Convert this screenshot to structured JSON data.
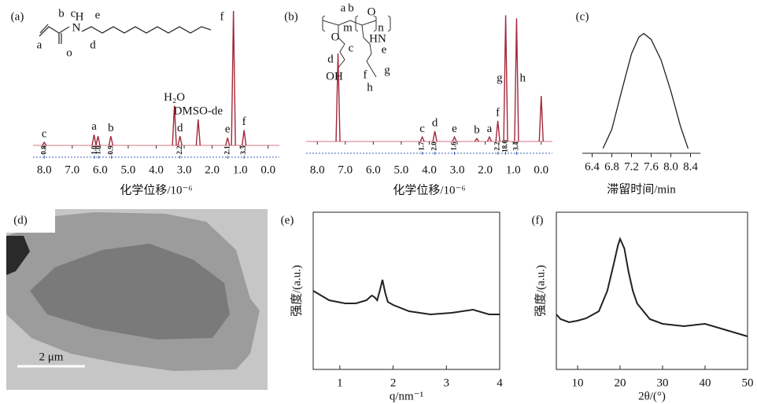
{
  "chart_data": [
    {
      "type": "spectrum",
      "panel_label": "(a)",
      "xlabel": "化学位移/10⁻⁶",
      "xlim": [
        8.4,
        -0.4
      ],
      "ylim": [
        0,
        180
      ],
      "xticks": [
        {
          "value": 8,
          "label": "8.0"
        },
        {
          "value": 7,
          "label": "7.0"
        },
        {
          "value": 6,
          "label": "6.0"
        },
        {
          "value": 5,
          "label": "5.0"
        },
        {
          "value": 4,
          "label": "4.0"
        },
        {
          "value": 3,
          "label": "3.0"
        },
        {
          "value": 2,
          "label": "2.0"
        },
        {
          "value": 1,
          "label": "1.0"
        },
        {
          "value": 0,
          "label": "0.0"
        }
      ],
      "x": [
        8.0,
        6.22,
        6.08,
        5.62,
        3.35,
        3.15,
        2.5,
        1.45,
        1.24,
        0.86
      ],
      "values": [
        4,
        14,
        12,
        12,
        52,
        12,
        34,
        10,
        176,
        20
      ],
      "labels": [
        "c",
        "a",
        null,
        "b",
        "H₂O",
        "d",
        "DMSO-de",
        "e",
        null,
        "f"
      ],
      "color": "#a3283a",
      "integrals": {
        "x": [
          8.0,
          6.2,
          6.05,
          5.6,
          3.15,
          1.45,
          0.86
        ],
        "values": [
          0.8,
          1,
          1,
          0.9,
          2.2,
          2.1,
          3.3
        ],
        "value_labels": [
          "0.8",
          "1.0",
          "1.0",
          "0.9",
          "2.2",
          "2.1",
          "3.3"
        ]
      },
      "structure_labels": [
        "a",
        "b",
        "c",
        "H",
        "N",
        "e",
        "f",
        "o",
        "d"
      ]
    },
    {
      "type": "spectrum",
      "panel_label": "(b)",
      "xlabel": "化学位移/10⁻⁶",
      "xlim": [
        8.4,
        -0.4
      ],
      "ylim": [
        0,
        180
      ],
      "xticks": [
        {
          "value": 8,
          "label": "8.0"
        },
        {
          "value": 7,
          "label": "7.0"
        },
        {
          "value": 6,
          "label": "6.0"
        },
        {
          "value": 5,
          "label": "5.0"
        },
        {
          "value": 4,
          "label": "4.0"
        },
        {
          "value": 3,
          "label": "3.0"
        },
        {
          "value": 2,
          "label": "2.0"
        },
        {
          "value": 1,
          "label": "1.0"
        },
        {
          "value": 0,
          "label": "0.0"
        }
      ],
      "x": [
        7.26,
        4.25,
        3.8,
        3.1,
        2.3,
        1.85,
        1.55,
        1.27,
        0.88,
        0.0
      ],
      "values": [
        120,
        6,
        14,
        6,
        4,
        6,
        28,
        172,
        168,
        62
      ],
      "labels": [
        null,
        "c",
        "d",
        "e",
        "b",
        "a",
        "f",
        "g",
        "h",
        null
      ],
      "color": "#a3283a",
      "integrals": {
        "x": [
          4.25,
          3.8,
          3.1,
          1.55,
          1.27,
          0.88
        ],
        "values": [
          1.7,
          2,
          1.6,
          2.2,
          18.6,
          3.4
        ],
        "value_labels": [
          "1.7",
          "2.0",
          "1.6",
          "2.2",
          "18.6",
          "3.4"
        ]
      },
      "structure_labels": [
        "a",
        "b",
        "m",
        "n",
        "c",
        "d",
        "e",
        "f",
        "g",
        "h",
        "O",
        "OH",
        "HN",
        "O"
      ]
    },
    {
      "type": "line",
      "panel_label": "(c)",
      "xlabel": "滞留时间/min",
      "xlim": [
        6.2,
        8.6
      ],
      "ylim": [
        0,
        1.05
      ],
      "xticks": [
        6.4,
        6.8,
        7.2,
        7.6,
        {
          "value": 8,
          "label": "8.0"
        },
        8.4
      ],
      "x": [
        6.62,
        6.8,
        7.0,
        7.2,
        7.35,
        7.45,
        7.6,
        7.8,
        8.0,
        8.2,
        8.35
      ],
      "values": [
        0.04,
        0.2,
        0.52,
        0.83,
        0.97,
        1.0,
        0.95,
        0.78,
        0.52,
        0.22,
        0.04
      ],
      "color": "#222222"
    },
    {
      "type": "image",
      "panel_label": "(d)",
      "scale_bar": "2 μm"
    },
    {
      "type": "line",
      "panel_label": "(e)",
      "xlabel": "q/nm⁻¹",
      "ylabel": "强度/(a.u.)",
      "xlim": [
        0.5,
        4
      ],
      "ylim": [
        0,
        100
      ],
      "xticks": [
        1,
        2,
        3,
        4
      ],
      "x": [
        0.5,
        0.8,
        1.1,
        1.3,
        1.5,
        1.6,
        1.65,
        1.7,
        1.75,
        1.8,
        1.85,
        1.9,
        2.0,
        2.3,
        2.7,
        3.1,
        3.5,
        3.8,
        4.0
      ],
      "values": [
        50,
        44,
        42,
        42,
        44,
        47,
        46,
        44,
        50,
        57,
        49,
        43,
        41,
        37,
        35,
        36,
        38,
        35,
        35
      ],
      "color": "#222222"
    },
    {
      "type": "line",
      "panel_label": "(f)",
      "xlabel": "2θ/(°)",
      "ylabel": "强度/(a.u.)",
      "xlim": [
        5,
        50
      ],
      "ylim": [
        0,
        100
      ],
      "xticks": [
        10,
        20,
        30,
        40,
        50
      ],
      "x": [
        5,
        6,
        8,
        10,
        12,
        15,
        17,
        18.5,
        19.5,
        20,
        21,
        22,
        23,
        24,
        27,
        30,
        35,
        40,
        45,
        50
      ],
      "values": [
        35,
        32,
        30,
        31,
        32.5,
        37,
        50,
        67,
        79,
        83,
        77,
        62,
        50,
        42,
        32,
        29,
        27.5,
        29,
        25,
        21
      ],
      "color": "#222222"
    }
  ]
}
